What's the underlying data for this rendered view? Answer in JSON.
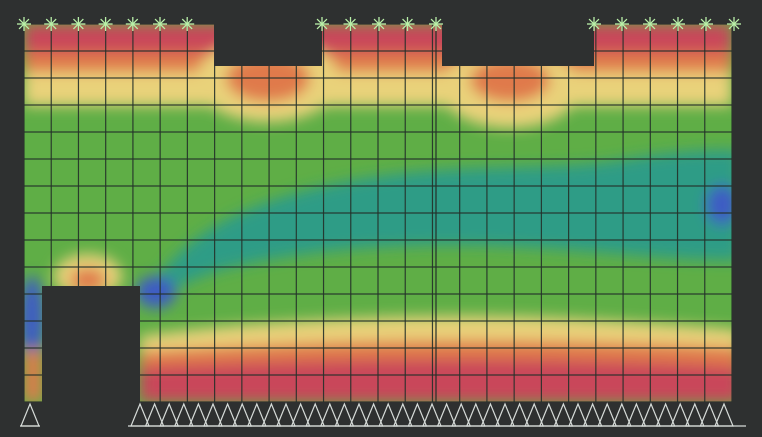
{
  "figure": {
    "type": "finite-element stress contour plot",
    "frame_color": "#2e3030",
    "contour_palette": {
      "high": "#c9475a",
      "upper_mid": "#e07a4c",
      "mid_high": "#e9d27a",
      "mid": "#5fae46",
      "low_mid": "#2f9c86",
      "low": "#3d5cc4"
    },
    "mesh": {
      "line_color": "#24302a",
      "columns": 26,
      "rows": 14
    },
    "top_constraints": {
      "symbol": "star-node",
      "color": "#b9f0a8"
    },
    "bottom_supports": {
      "symbol": "triangle-support",
      "color": "#d6dbd8"
    },
    "openings": {
      "top": 2,
      "bottom_left": 1,
      "color": "#2e3030"
    }
  }
}
